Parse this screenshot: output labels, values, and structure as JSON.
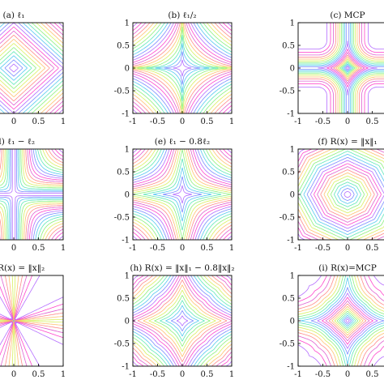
{
  "chart_data": [
    {
      "type": "contour",
      "title": "(a) ℓ₁",
      "function": "l1",
      "xlim": [
        -1,
        1
      ],
      "ylim": [
        -1,
        1
      ],
      "xticks": [
        "-0.5",
        "0",
        "0.5",
        "1"
      ],
      "yticks": []
    },
    {
      "type": "contour",
      "title": "(b) ℓ₁/₂",
      "function": "lhalf",
      "xlim": [
        -1,
        1
      ],
      "ylim": [
        -1,
        1
      ],
      "xticks": [
        "-1",
        "-0.5",
        "0",
        "0.5",
        "1"
      ],
      "yticks": [
        "1",
        "0.5",
        "0",
        "-0.5",
        "-1"
      ]
    },
    {
      "type": "contour",
      "title": "(c) MCP",
      "function": "mcp",
      "xlim": [
        -1,
        1
      ],
      "ylim": [
        -1,
        1
      ],
      "xticks": [
        "-1",
        "-0.5",
        "0",
        "0.5"
      ],
      "yticks": [
        "1",
        "0.5",
        "0",
        "-0.5",
        "-1"
      ]
    },
    {
      "type": "contour",
      "title": "(d) ℓ₁ − ℓ₂",
      "function": "l1ml2",
      "xlim": [
        -1,
        1
      ],
      "ylim": [
        -1,
        1
      ],
      "xticks": [
        "-0.5",
        "0",
        "0.5",
        "1"
      ],
      "yticks": []
    },
    {
      "type": "contour",
      "title": "(e) ℓ₁ − 0.8ℓ₂",
      "function": "l1m08l2",
      "xlim": [
        -1,
        1
      ],
      "ylim": [
        -1,
        1
      ],
      "xticks": [
        "-1",
        "-0.5",
        "0",
        "0.5",
        "1"
      ],
      "yticks": [
        "1",
        "0.5",
        "0",
        "-0.5",
        "-1"
      ]
    },
    {
      "type": "contour",
      "title": "(f) R(x) = ‖x‖₁",
      "function": "boxl1",
      "xlim": [
        -1,
        1
      ],
      "ylim": [
        -1,
        1
      ],
      "xticks": [
        "-1",
        "-0.5",
        "0",
        "0.5"
      ],
      "yticks": [
        "1",
        "0.5",
        "0",
        "-0.5",
        "-1"
      ]
    },
    {
      "type": "contour",
      "title": "(g) R(x) = ‖x‖₂",
      "function": "ratio",
      "xlim": [
        -1,
        1
      ],
      "ylim": [
        -1,
        1
      ],
      "xticks": [
        "-0.5",
        "0",
        "0.5",
        "1"
      ],
      "yticks": []
    },
    {
      "type": "contour",
      "title": "(h) R(x) = ‖x‖₁ − 0.8‖x‖₂",
      "function": "boxl1m",
      "xlim": [
        -1,
        1
      ],
      "ylim": [
        -1,
        1
      ],
      "xticks": [
        "-1",
        "-0.5",
        "0",
        "0.5",
        "1"
      ],
      "yticks": [
        "1",
        "0.5",
        "0",
        "-0.5",
        "-1"
      ]
    },
    {
      "type": "contour",
      "title": "(i) R(x)=MCP",
      "function": "boxmcp",
      "xlim": [
        -1,
        1
      ],
      "ylim": [
        -1,
        1
      ],
      "xticks": [
        "-1",
        "-0.5",
        "0",
        "0.5"
      ],
      "yticks": [
        "1",
        "0.5",
        "0",
        "-0.5",
        "-1"
      ]
    }
  ],
  "colors": [
    "#ff44cc",
    "#b46cff",
    "#7a8cff",
    "#55c8f0",
    "#5fe8b8",
    "#8cf07c",
    "#d8f060",
    "#ffc070",
    "#ff8a8a",
    "#e060d0"
  ]
}
